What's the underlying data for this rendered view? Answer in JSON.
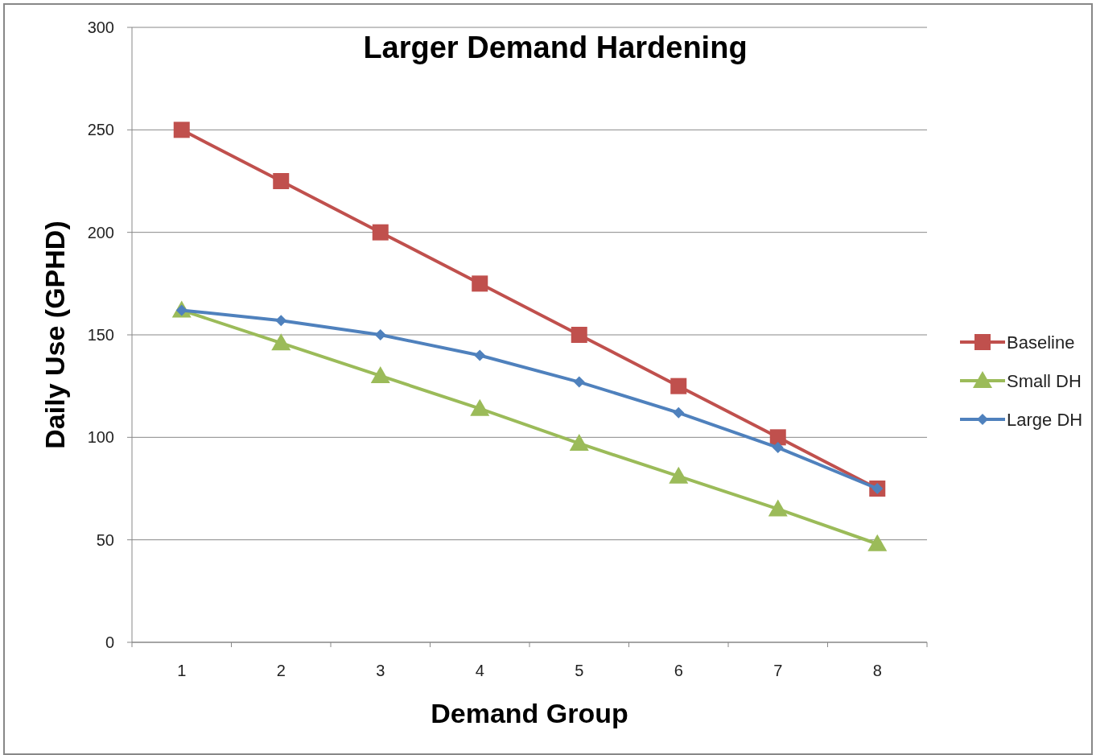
{
  "chart_data": {
    "type": "line",
    "title": "Larger Demand Hardening",
    "xlabel": "Demand Group",
    "ylabel": "Daily Use  (GPHD)",
    "categories": [
      "1",
      "2",
      "3",
      "4",
      "5",
      "6",
      "7",
      "8"
    ],
    "series": [
      {
        "name": "Baseline",
        "color": "#c0504d",
        "marker": "square",
        "values": [
          250,
          225,
          200,
          175,
          150,
          125,
          100,
          75
        ]
      },
      {
        "name": "Small DH",
        "color": "#9bbb59",
        "marker": "triangle",
        "values": [
          162,
          146,
          130,
          114,
          97,
          81,
          65,
          48
        ]
      },
      {
        "name": "Large DH",
        "color": "#4f81bd",
        "marker": "diamond",
        "values": [
          162,
          157,
          150,
          140,
          127,
          112,
          95,
          75
        ]
      }
    ],
    "ylim": [
      0,
      300
    ],
    "yticks": [
      0,
      50,
      100,
      150,
      200,
      250,
      300
    ],
    "grid": "y",
    "legend": "right"
  }
}
